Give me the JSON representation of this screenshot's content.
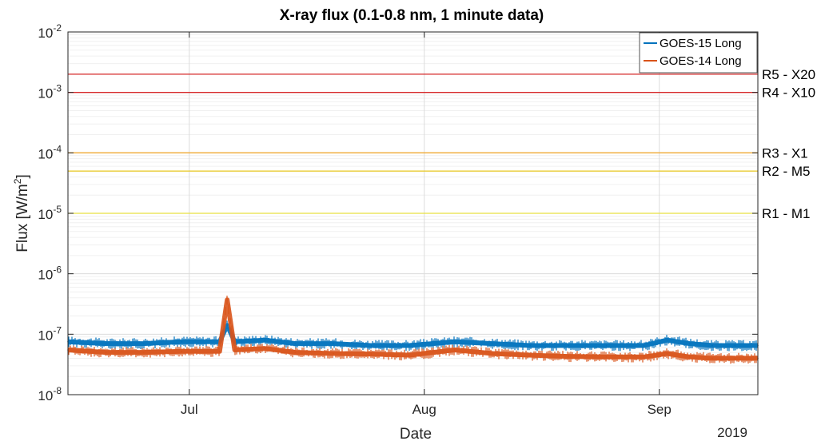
{
  "chart_data": {
    "type": "line",
    "title": "X-ray flux (0.1-0.8 nm, 1 minute data)",
    "xlabel": "Date",
    "ylabel": "Flux [W/m²]",
    "ylabel_base": "Flux [W/m",
    "ylabel_exp": "2",
    "ylabel_close": "]",
    "yscale": "log",
    "ylim": [
      1e-08,
      0.01
    ],
    "xlim": [
      "2019-06-15",
      "2019-09-14"
    ],
    "x_ticks": [
      {
        "date": "2019-07-01",
        "label": "Jul"
      },
      {
        "date": "2019-08-01",
        "label": "Aug"
      },
      {
        "date": "2019-09-01",
        "label": "Sep"
      }
    ],
    "y_ticks": [
      {
        "value": 1e-08,
        "base": "10",
        "exp": "-8"
      },
      {
        "value": 1e-07,
        "base": "10",
        "exp": "-7"
      },
      {
        "value": 1e-06,
        "base": "10",
        "exp": "-6"
      },
      {
        "value": 1e-05,
        "base": "10",
        "exp": "-5"
      },
      {
        "value": 0.0001,
        "base": "10",
        "exp": "-4"
      },
      {
        "value": 0.001,
        "base": "10",
        "exp": "-3"
      },
      {
        "value": 0.01,
        "base": "10",
        "exp": "-2"
      }
    ],
    "year_label": "2019",
    "grid": true,
    "legend_position": "top-right",
    "thresholds": [
      {
        "label": "R5 - X20",
        "value": 0.002,
        "color": "#d62728"
      },
      {
        "label": "R4 - X10",
        "value": 0.001,
        "color": "#d62728"
      },
      {
        "label": "R3 - X1",
        "value": 0.0001,
        "color": "#f0a830"
      },
      {
        "label": "R2 - M5",
        "value": 5e-05,
        "color": "#e8c820"
      },
      {
        "label": "R1 - M1",
        "value": 1e-05,
        "color": "#e8e040"
      }
    ],
    "series": [
      {
        "name": "GOES-15 Long",
        "color": "#0072bd",
        "points": [
          [
            "2019-06-15",
            7.5e-08
          ],
          [
            "2019-06-20",
            7e-08
          ],
          [
            "2019-06-25",
            7e-08
          ],
          [
            "2019-06-30",
            7.5e-08
          ],
          [
            "2019-07-05",
            7.5e-08
          ],
          [
            "2019-07-06",
            1.4e-07
          ],
          [
            "2019-07-07",
            7.5e-08
          ],
          [
            "2019-07-11",
            8e-08
          ],
          [
            "2019-07-15",
            7e-08
          ],
          [
            "2019-07-20",
            7e-08
          ],
          [
            "2019-07-25",
            6.5e-08
          ],
          [
            "2019-07-30",
            6.5e-08
          ],
          [
            "2019-08-05",
            7.5e-08
          ],
          [
            "2019-08-10",
            7e-08
          ],
          [
            "2019-08-15",
            6.5e-08
          ],
          [
            "2019-08-20",
            6.5e-08
          ],
          [
            "2019-08-25",
            6.5e-08
          ],
          [
            "2019-08-30",
            6.5e-08
          ],
          [
            "2019-09-02",
            8e-08
          ],
          [
            "2019-09-05",
            7e-08
          ],
          [
            "2019-09-08",
            6.5e-08
          ],
          [
            "2019-09-11",
            6.5e-08
          ],
          [
            "2019-09-14",
            6.5e-08
          ]
        ]
      },
      {
        "name": "GOES-14 Long",
        "color": "#d95319",
        "points": [
          [
            "2019-06-15",
            5.5e-08
          ],
          [
            "2019-06-20",
            5e-08
          ],
          [
            "2019-06-25",
            5e-08
          ],
          [
            "2019-06-30",
            5.2e-08
          ],
          [
            "2019-07-05",
            5.2e-08
          ],
          [
            "2019-07-06",
            3.7e-07
          ],
          [
            "2019-07-07",
            5.5e-08
          ],
          [
            "2019-07-11",
            5.8e-08
          ],
          [
            "2019-07-15",
            5e-08
          ],
          [
            "2019-07-20",
            4.8e-08
          ],
          [
            "2019-07-25",
            4.7e-08
          ],
          [
            "2019-07-30",
            4.5e-08
          ],
          [
            "2019-08-05",
            5.5e-08
          ],
          [
            "2019-08-10",
            4.8e-08
          ],
          [
            "2019-08-15",
            4.5e-08
          ],
          [
            "2019-08-20",
            4.3e-08
          ],
          [
            "2019-08-25",
            4.2e-08
          ],
          [
            "2019-08-30",
            4.2e-08
          ],
          [
            "2019-09-02",
            4.8e-08
          ],
          [
            "2019-09-05",
            4.2e-08
          ],
          [
            "2019-09-08",
            4e-08
          ],
          [
            "2019-09-11",
            4e-08
          ],
          [
            "2019-09-14",
            4e-08
          ]
        ]
      }
    ]
  }
}
